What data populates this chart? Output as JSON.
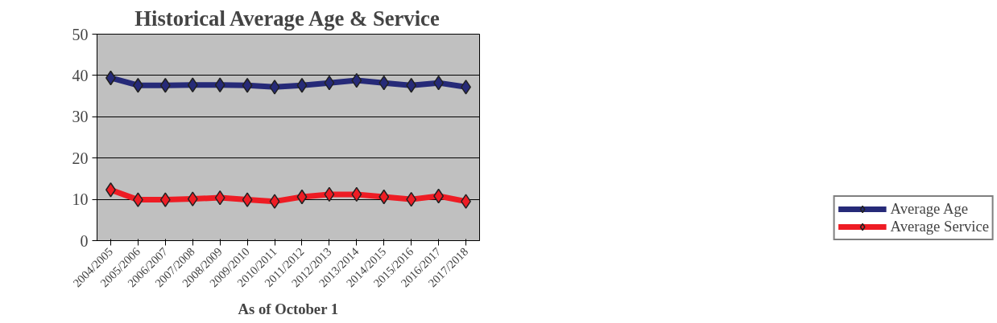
{
  "chart_data": {
    "type": "line",
    "title": "Historical Average Age & Service",
    "xlabel": "As of October 1",
    "categories": [
      "2004/2005",
      "2005/2006",
      "2006/2007",
      "2007/2008",
      "2008/2009",
      "2009/2010",
      "2010/2011",
      "2011/2012",
      "2012/2013",
      "2013/2014",
      "2014/2015",
      "2015/2016",
      "2016/2017",
      "2017/2018"
    ],
    "series": [
      {
        "name": "Average Age",
        "color": "#262a78",
        "values": [
          39.4,
          37.6,
          37.6,
          37.7,
          37.7,
          37.6,
          37.2,
          37.6,
          38.2,
          38.8,
          38.2,
          37.6,
          38.2,
          37.2
        ]
      },
      {
        "name": "Average Service",
        "color": "#ee1c24",
        "values": [
          12.3,
          9.9,
          9.9,
          10.1,
          10.4,
          9.9,
          9.5,
          10.6,
          11.2,
          11.2,
          10.6,
          10.0,
          10.8,
          9.5
        ]
      }
    ],
    "ylim": [
      0,
      50
    ],
    "yticks": [
      0,
      10,
      20,
      30,
      40,
      50
    ],
    "grid": "y",
    "marker": "diamond",
    "line_style": "solid",
    "legend": "bottom right"
  }
}
